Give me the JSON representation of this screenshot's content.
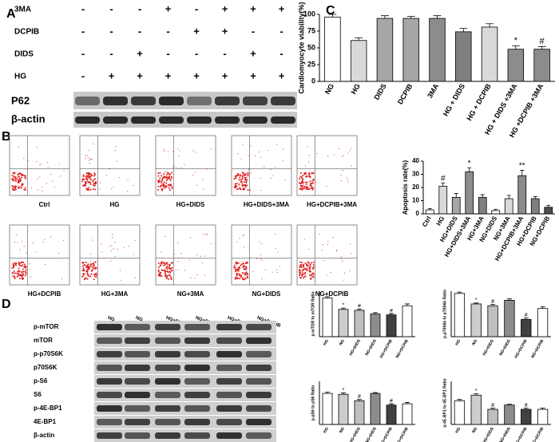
{
  "panels": {
    "a": "A",
    "b": "B",
    "c": "C",
    "d": "D"
  },
  "panel_a": {
    "rows": [
      {
        "label": "3MA",
        "signs": [
          "-",
          "-",
          "-",
          "+",
          "-",
          "+",
          "+",
          "+"
        ]
      },
      {
        "label": "DCPIB",
        "signs": [
          "-",
          "-",
          "-",
          "-",
          "+",
          "+",
          "-",
          "-"
        ]
      },
      {
        "label": "DIDS",
        "signs": [
          "-",
          "-",
          "+",
          "-",
          "-",
          "-",
          "+",
          "-"
        ]
      },
      {
        "label": "HG",
        "signs": [
          "-",
          "+",
          "+",
          "+",
          "+",
          "+",
          "+",
          "+"
        ]
      }
    ],
    "blots": [
      "P62",
      "β-actin"
    ]
  },
  "panel_b": {
    "plots": [
      "Ctrl",
      "HG",
      "HG+DIDS",
      "HG+DIDS+3MA",
      "HG+DCPIB+3MA",
      "HG+DCPIB",
      "HG+3MA",
      "NG+3MA",
      "NG+DIDS",
      "NG+DCPIB"
    ]
  },
  "panel_d": {
    "columns": [
      "HG",
      "NG",
      "HG+DIDS",
      "NG+DIDS",
      "HG+DCPIB",
      "NG+DCPIB"
    ],
    "blots": [
      "p-mTOR",
      "mTOR",
      "p-p70S6K",
      "p70S6K",
      "p-S6",
      "S6",
      "p-4E-BP1",
      "4E-BP1",
      "β-actin"
    ]
  },
  "chart_data": [
    {
      "type": "bar",
      "y_label": "Cardiomyocyte viability(%)",
      "categories": [
        "NG",
        "HG",
        "DIDS",
        "DCPIB",
        "3MA",
        "HG + DIDS",
        "HG + DCPIB",
        "HG + DIDS +3MA",
        "HG +DCPIB +3MA"
      ],
      "values": [
        96,
        61,
        94,
        94,
        94,
        74,
        81,
        48,
        48
      ],
      "errors": [
        4,
        4,
        4,
        3,
        4,
        5,
        5,
        5,
        4
      ],
      "colors": [
        "#ffffff",
        "#d9d9d9",
        "#a6a6a6",
        "#a6a6a6",
        "#8c8c8c",
        "#7f7f7f",
        "#d9d9d9",
        "#8c8c8c",
        "#8c8c8c"
      ],
      "annotations": [
        {
          "index": 7,
          "text": "*"
        },
        {
          "index": 8,
          "text": "#"
        }
      ],
      "ylim": [
        0,
        100
      ],
      "yticks": [
        0,
        25,
        50,
        75,
        100
      ]
    },
    {
      "type": "bar",
      "y_label": "Apoptosis rate(%)",
      "categories": [
        "Ctrl",
        "HG",
        "HG+DIDS",
        "HG+DIDS+3MA",
        "HG+3MA",
        "NG+DIDS",
        "NG+3MA",
        "HG+DCPIB+3MA",
        "HG+DCPIB",
        "NG+DCPIB"
      ],
      "values": [
        3,
        21,
        12.5,
        32,
        12.5,
        2.5,
        11.5,
        29,
        11.5,
        5
      ],
      "errors": [
        1,
        2.5,
        3,
        3,
        2,
        1,
        2.5,
        4,
        1.5,
        1.5
      ],
      "colors": [
        "#ffffff",
        "#d9d9d9",
        "#a6a6a6",
        "#8c8c8c",
        "#7f7f7f",
        "#ffffff",
        "#d9d9d9",
        "#8c8c8c",
        "#7f7f7f",
        "#4d4d4d"
      ],
      "annotations": [
        {
          "index": 1,
          "text": "#"
        },
        {
          "index": 3,
          "text": "*"
        },
        {
          "index": 7,
          "text": "**"
        }
      ],
      "ylim": [
        0,
        40
      ],
      "yticks": [
        0,
        10,
        20,
        30,
        40
      ]
    },
    {
      "type": "bar",
      "y_label": "p-mTOR to mTOR Ratio",
      "categories": [
        "HG",
        "NG",
        "HG+DIDS",
        "NG+DIDS",
        "HG+DCPIB",
        "NG+DCPIB"
      ],
      "values": [
        0.85,
        0.6,
        0.58,
        0.5,
        0.48,
        0.68
      ],
      "errors": [
        0.03,
        0.03,
        0.03,
        0.03,
        0.03,
        0.04
      ],
      "colors": [
        "#ffffff",
        "#cccccc",
        "#bfbfbf",
        "#8c8c8c",
        "#404040",
        "#ffffff"
      ],
      "annotations": [
        {
          "index": 1,
          "text": "*"
        },
        {
          "index": 2,
          "text": "#"
        },
        {
          "index": 4,
          "text": "#"
        }
      ],
      "ylim": [
        0,
        1
      ]
    },
    {
      "type": "bar",
      "y_label": "p-p70S6k to p70S6k Ratio",
      "categories": [
        "HG",
        "NG",
        "HG+DIDS",
        "NG+DIDS",
        "HG+DCPIB",
        "NG+DCPIB"
      ],
      "values": [
        0.95,
        0.72,
        0.68,
        0.8,
        0.38,
        0.62
      ],
      "errors": [
        0.03,
        0.02,
        0.03,
        0.03,
        0.03,
        0.04
      ],
      "colors": [
        "#ffffff",
        "#cccccc",
        "#bfbfbf",
        "#8c8c8c",
        "#404040",
        "#ffffff"
      ],
      "annotations": [
        {
          "index": 1,
          "text": "*"
        },
        {
          "index": 2,
          "text": "#"
        },
        {
          "index": 4,
          "text": "#"
        }
      ],
      "ylim": [
        0,
        1
      ]
    },
    {
      "type": "bar",
      "y_label": "p-pS6 to pS6 Ratio",
      "categories": [
        "HG",
        "NG",
        "HG+DIDS",
        "NG+DIDS",
        "HG+DCPIB",
        "NG+DCPIB"
      ],
      "values": [
        0.72,
        0.7,
        0.55,
        0.72,
        0.45,
        0.48
      ],
      "errors": [
        0.03,
        0.03,
        0.03,
        0.02,
        0.03,
        0.03
      ],
      "colors": [
        "#ffffff",
        "#cccccc",
        "#bfbfbf",
        "#8c8c8c",
        "#404040",
        "#ffffff"
      ],
      "annotations": [
        {
          "index": 1,
          "text": "*"
        },
        {
          "index": 2,
          "text": "#"
        },
        {
          "index": 4,
          "text": "#"
        }
      ],
      "ylim": [
        0,
        1
      ]
    },
    {
      "type": "bar",
      "y_label": "p-4E-BP1 to 4E-BP1 Ratio",
      "categories": [
        "HG",
        "NG",
        "HG+DIDS",
        "NG+DIDS",
        "HG+DCPIB",
        "NG+DCPIB"
      ],
      "values": [
        0.55,
        0.68,
        0.35,
        0.45,
        0.35,
        0.35
      ],
      "errors": [
        0.03,
        0.03,
        0.03,
        0.02,
        0.03,
        0.03
      ],
      "colors": [
        "#ffffff",
        "#cccccc",
        "#bfbfbf",
        "#8c8c8c",
        "#404040",
        "#ffffff"
      ],
      "annotations": [
        {
          "index": 1,
          "text": "*"
        },
        {
          "index": 2,
          "text": "#"
        },
        {
          "index": 4,
          "text": "#"
        }
      ],
      "ylim": [
        0,
        1
      ]
    }
  ]
}
